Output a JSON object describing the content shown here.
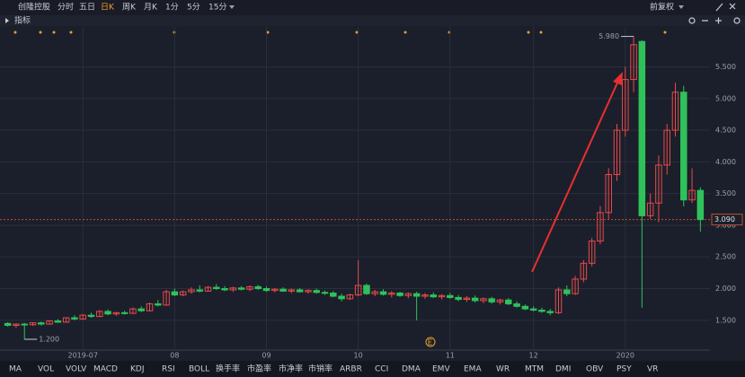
{
  "toolbar": {
    "stock": "创隆控股",
    "tabs": [
      "分时",
      "五日",
      "日K",
      "周K",
      "月K",
      "1分",
      "5分",
      "15分"
    ],
    "adjust": "前复权"
  },
  "indicator_header": "指标",
  "chart_data": {
    "type": "candlestick",
    "up_color": "#e84a4a",
    "down_color": "#2fc25b",
    "ylim": [
      1.03,
      6.13
    ],
    "yticks": [
      {
        "value": 1.5,
        "label": "1.500"
      },
      {
        "value": 2,
        "label": "2.000"
      },
      {
        "value": 2.5,
        "label": "2.500"
      },
      {
        "value": 3,
        "label": "3.000"
      },
      {
        "value": 3.5,
        "label": "3.500"
      },
      {
        "value": 4,
        "label": "4.000"
      },
      {
        "value": 4.5,
        "label": "4.500"
      },
      {
        "value": 5,
        "label": "5.000"
      },
      {
        "value": 5.5,
        "label": "5.500"
      }
    ],
    "categories": [
      null,
      null,
      null,
      null,
      null,
      null,
      null,
      null,
      null,
      "2019-07",
      null,
      null,
      null,
      null,
      null,
      null,
      null,
      null,
      null,
      null,
      "08",
      null,
      null,
      null,
      null,
      null,
      null,
      null,
      null,
      null,
      null,
      "09",
      null,
      null,
      null,
      null,
      null,
      null,
      null,
      null,
      null,
      null,
      "10",
      null,
      null,
      null,
      null,
      null,
      null,
      null,
      null,
      null,
      null,
      "11",
      null,
      null,
      null,
      null,
      null,
      null,
      null,
      null,
      null,
      "12",
      null,
      null,
      null,
      null,
      null,
      null,
      null,
      null,
      null,
      null,
      "2020",
      null,
      null,
      null,
      null,
      null,
      null,
      null,
      null,
      null
    ],
    "candles": [
      [
        1.45,
        1.47,
        1.4,
        1.42
      ],
      [
        1.42,
        1.45,
        1.38,
        1.44
      ],
      [
        1.44,
        1.46,
        1.2,
        1.43
      ],
      [
        1.43,
        1.47,
        1.41,
        1.46
      ],
      [
        1.46,
        1.48,
        1.42,
        1.44
      ],
      [
        1.44,
        1.5,
        1.43,
        1.49
      ],
      [
        1.49,
        1.52,
        1.46,
        1.47
      ],
      [
        1.47,
        1.55,
        1.46,
        1.54
      ],
      [
        1.54,
        1.58,
        1.5,
        1.52
      ],
      [
        1.52,
        1.6,
        1.51,
        1.58
      ],
      [
        1.58,
        1.62,
        1.54,
        1.56
      ],
      [
        1.56,
        1.66,
        1.55,
        1.64
      ],
      [
        1.64,
        1.67,
        1.58,
        1.6
      ],
      [
        1.6,
        1.63,
        1.57,
        1.62
      ],
      [
        1.62,
        1.65,
        1.59,
        1.61
      ],
      [
        1.61,
        1.7,
        1.6,
        1.68
      ],
      [
        1.68,
        1.72,
        1.63,
        1.65
      ],
      [
        1.65,
        1.78,
        1.64,
        1.76
      ],
      [
        1.76,
        1.82,
        1.72,
        1.74
      ],
      [
        1.74,
        1.98,
        1.73,
        1.95
      ],
      [
        1.95,
        2.0,
        1.88,
        1.9
      ],
      [
        1.9,
        1.97,
        1.88,
        1.95
      ],
      [
        1.95,
        2.02,
        1.92,
        1.98
      ],
      [
        1.98,
        2.05,
        1.94,
        1.96
      ],
      [
        1.96,
        2.04,
        1.95,
        2.02
      ],
      [
        2.02,
        2.07,
        1.98,
        2.0
      ],
      [
        2.0,
        2.04,
        1.96,
        1.98
      ],
      [
        1.98,
        2.03,
        1.95,
        2.01
      ],
      [
        2.01,
        2.04,
        1.97,
        1.99
      ],
      [
        1.99,
        2.05,
        1.96,
        2.03
      ],
      [
        2.03,
        2.06,
        1.98,
        2.0
      ],
      [
        2.0,
        2.03,
        1.95,
        1.97
      ],
      [
        1.97,
        2.01,
        1.94,
        1.99
      ],
      [
        1.99,
        2.02,
        1.95,
        1.96
      ],
      [
        1.96,
        2.0,
        1.93,
        1.98
      ],
      [
        1.98,
        2.01,
        1.94,
        1.95
      ],
      [
        1.95,
        1.99,
        1.92,
        1.97
      ],
      [
        1.97,
        2.0,
        1.92,
        1.94
      ],
      [
        1.94,
        1.97,
        1.9,
        1.93
      ],
      [
        1.93,
        1.96,
        1.86,
        1.88
      ],
      [
        1.88,
        1.92,
        1.8,
        1.84
      ],
      [
        1.84,
        1.92,
        1.82,
        1.9
      ],
      [
        1.9,
        2.45,
        1.88,
        2.05
      ],
      [
        2.05,
        2.08,
        1.9,
        1.92
      ],
      [
        1.92,
        1.98,
        1.88,
        1.95
      ],
      [
        1.95,
        1.99,
        1.89,
        1.91
      ],
      [
        1.91,
        1.96,
        1.86,
        1.93
      ],
      [
        1.93,
        1.95,
        1.87,
        1.89
      ],
      [
        1.89,
        1.94,
        1.85,
        1.92
      ],
      [
        1.92,
        1.95,
        1.5,
        1.88
      ],
      [
        1.88,
        1.93,
        1.84,
        1.9
      ],
      [
        1.9,
        1.94,
        1.85,
        1.87
      ],
      [
        1.87,
        1.91,
        1.83,
        1.89
      ],
      [
        1.89,
        1.93,
        1.84,
        1.86
      ],
      [
        1.86,
        1.9,
        1.8,
        1.83
      ],
      [
        1.83,
        1.88,
        1.79,
        1.85
      ],
      [
        1.85,
        1.89,
        1.78,
        1.81
      ],
      [
        1.81,
        1.86,
        1.77,
        1.84
      ],
      [
        1.84,
        1.87,
        1.76,
        1.79
      ],
      [
        1.79,
        1.84,
        1.75,
        1.82
      ],
      [
        1.82,
        1.85,
        1.74,
        1.76
      ],
      [
        1.76,
        1.8,
        1.7,
        1.72
      ],
      [
        1.72,
        1.75,
        1.66,
        1.68
      ],
      [
        1.68,
        1.72,
        1.64,
        1.66
      ],
      [
        1.66,
        1.7,
        1.62,
        1.64
      ],
      [
        1.64,
        1.68,
        1.58,
        1.62
      ],
      [
        1.62,
        2.02,
        1.6,
        1.98
      ],
      [
        1.98,
        2.05,
        1.88,
        1.92
      ],
      [
        1.92,
        2.2,
        1.9,
        2.15
      ],
      [
        2.15,
        2.45,
        2.1,
        2.4
      ],
      [
        2.4,
        2.8,
        2.35,
        2.75
      ],
      [
        2.75,
        3.3,
        2.7,
        3.2
      ],
      [
        3.2,
        3.9,
        3.1,
        3.8
      ],
      [
        3.8,
        4.6,
        3.7,
        4.5
      ],
      [
        4.5,
        5.5,
        4.4,
        5.3
      ],
      [
        5.3,
        5.98,
        5.1,
        5.85
      ],
      [
        5.9,
        5.92,
        1.7,
        3.15
      ],
      [
        3.15,
        3.5,
        3.1,
        3.35
      ],
      [
        3.35,
        4.1,
        3.05,
        3.95
      ],
      [
        3.95,
        4.6,
        3.8,
        4.5
      ],
      [
        4.5,
        5.25,
        4.4,
        5.1
      ],
      [
        5.1,
        5.2,
        3.3,
        3.4
      ],
      [
        3.4,
        3.9,
        3.35,
        3.55
      ],
      [
        3.55,
        3.6,
        2.9,
        3.09
      ]
    ],
    "max_label": {
      "value": 5.98,
      "label": "5.980"
    },
    "min_label": {
      "value": 1.2,
      "label": "1.200"
    },
    "last_price": {
      "value": 3.09,
      "label": "3.090"
    }
  },
  "indicator_tabs": [
    "MA",
    "VOL",
    "VOLV",
    "MACD",
    "KDJ",
    "RSI",
    "BOLL",
    "换手率",
    "市盈率",
    "市净率",
    "市销率",
    "ARBR",
    "CCI",
    "DMA",
    "EMV",
    "EMA",
    "WR",
    "MTM",
    "DMI",
    "OBV",
    "PSY",
    "VR"
  ]
}
